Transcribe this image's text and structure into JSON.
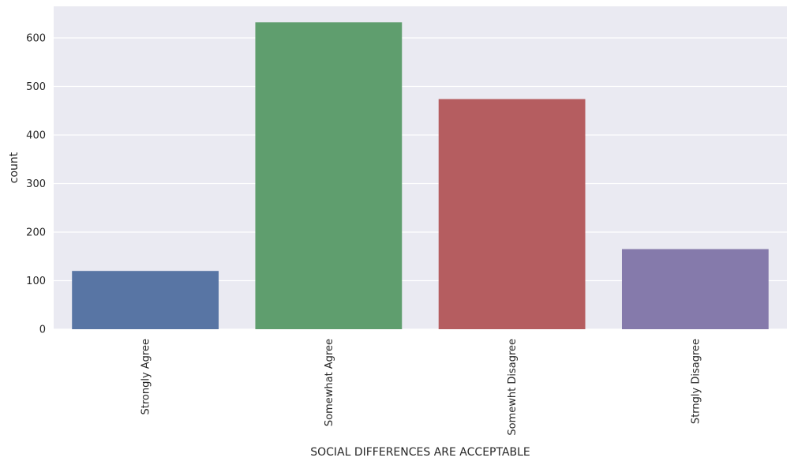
{
  "chart_data": {
    "type": "bar",
    "title": "",
    "xlabel": "SOCIAL DIFFERENCES ARE ACCEPTABLE",
    "ylabel": "count",
    "categories": [
      "Strongly Agree",
      "Somewhat Agree",
      "Somewht Disagree",
      "Strngly Disagree"
    ],
    "values": [
      120,
      632,
      474,
      165
    ],
    "colors": [
      "#5875a4",
      "#5f9e6e",
      "#b55d60",
      "#857aab"
    ],
    "ylim": [
      0,
      665
    ],
    "yticks": [
      0,
      100,
      200,
      300,
      400,
      500,
      600
    ],
    "grid": true,
    "background": "#eaeaf2"
  }
}
